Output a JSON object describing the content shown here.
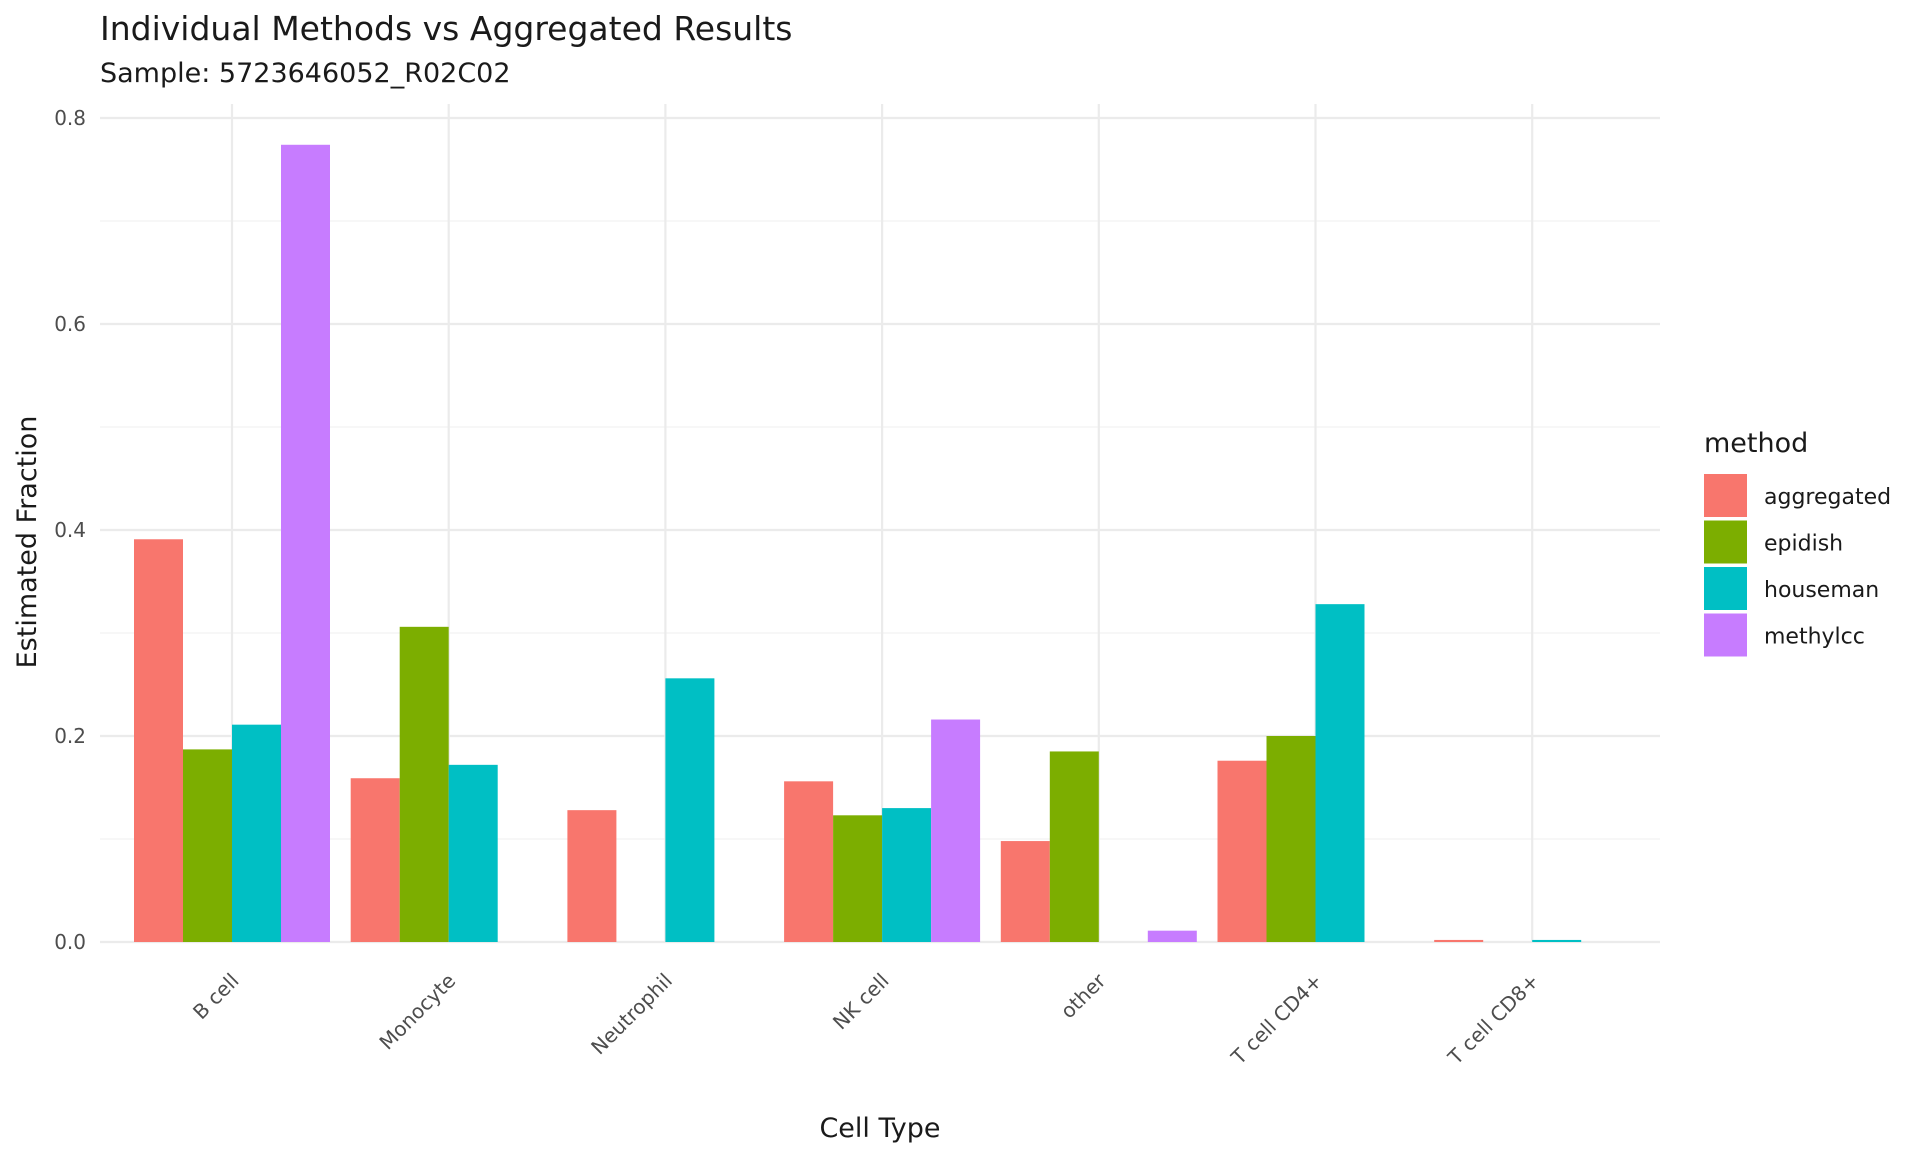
{
  "chart_data": {
    "type": "bar",
    "title": "Individual Methods vs Aggregated Results",
    "subtitle": "Sample: 5723646052_R02C02",
    "xlabel": "Cell Type",
    "ylabel": "Estimated Fraction",
    "ylim": [
      0,
      0.8
    ],
    "yticks": [
      "0.0",
      "0.2",
      "0.4",
      "0.6",
      "0.8"
    ],
    "grid": true,
    "legend_position": "right",
    "legend_title": "method",
    "categories": [
      "B cell",
      "Monocyte",
      "Neutrophil",
      "NK cell",
      "other",
      "T cell CD4+",
      "T cell CD8+"
    ],
    "series": [
      {
        "name": "aggregated",
        "color": "#F8766D",
        "values": [
          0.391,
          0.159,
          0.128,
          0.156,
          0.098,
          0.176,
          0.002
        ]
      },
      {
        "name": "epidish",
        "color": "#7CAE00",
        "values": [
          0.187,
          0.306,
          0.0,
          0.123,
          0.185,
          0.2,
          0.0
        ]
      },
      {
        "name": "houseman",
        "color": "#00BFC4",
        "values": [
          0.211,
          0.172,
          0.256,
          0.13,
          null,
          0.328,
          0.002
        ]
      },
      {
        "name": "methylcc",
        "color": "#C77CFF",
        "values": [
          0.774,
          null,
          null,
          0.216,
          0.011,
          null,
          null
        ]
      }
    ]
  }
}
